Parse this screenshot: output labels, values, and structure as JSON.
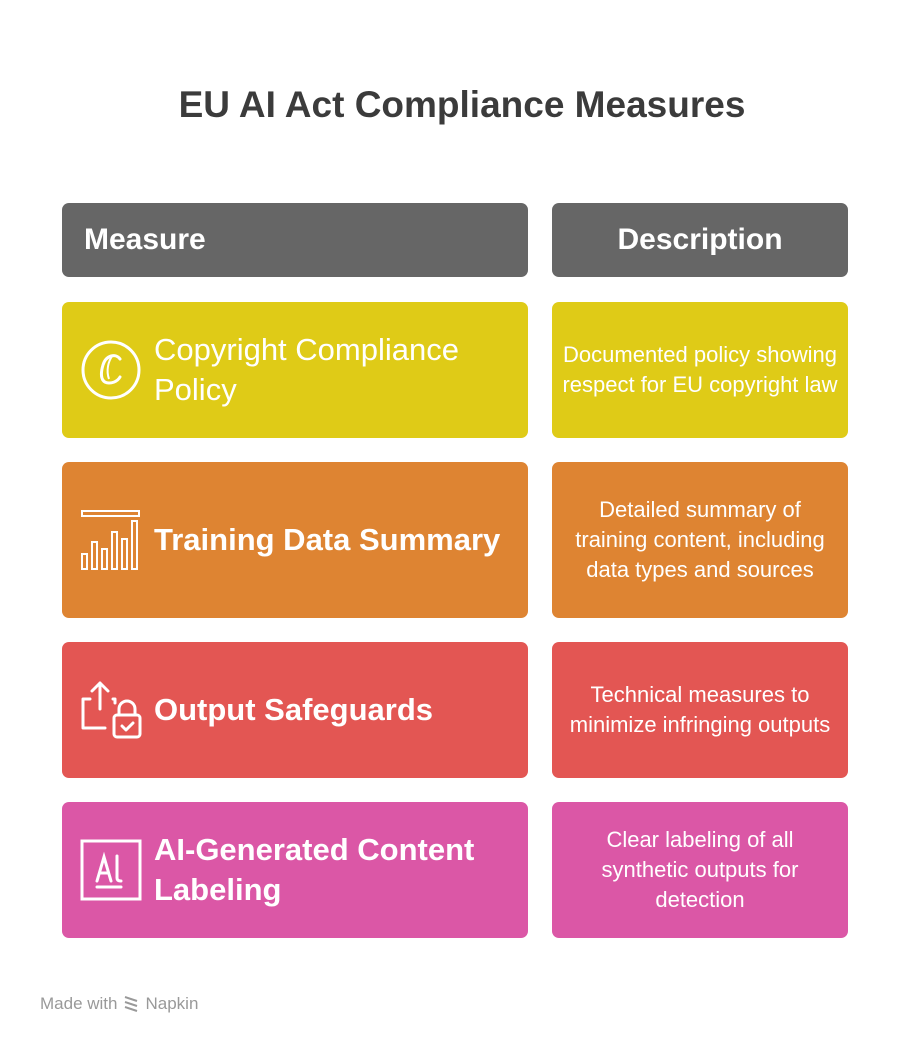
{
  "title": "EU AI Act Compliance Measures",
  "headers": {
    "measure": "Measure",
    "description": "Description"
  },
  "rows": [
    {
      "measure": "Copyright Compliance Policy",
      "description": "Documented policy showing respect for EU copyright law",
      "color": "#dfcb17",
      "icon": "copyright-icon"
    },
    {
      "measure": "Training Data Summary",
      "description": "Detailed summary of training content, including data types and sources",
      "color": "#de8432",
      "icon": "bar-chart-icon"
    },
    {
      "measure": "Output Safeguards",
      "description": "Technical measures to minimize infringing outputs",
      "color": "#e35653",
      "icon": "export-lock-icon"
    },
    {
      "measure": "AI-Generated Content Labeling",
      "description": "Clear labeling of all synthetic outputs for detection",
      "color": "#db57a6",
      "icon": "ai-label-icon"
    }
  ],
  "footer": {
    "made_with": "Made with",
    "brand": "Napkin"
  },
  "colors": {
    "header": "#666666",
    "title": "#3b3b3b"
  }
}
